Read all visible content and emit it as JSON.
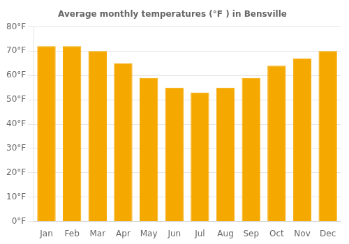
{
  "chart_data": {
    "type": "bar",
    "title": "Average monthly temperatures (°F ) in Bensville",
    "categories": [
      "Jan",
      "Feb",
      "Mar",
      "Apr",
      "May",
      "Jun",
      "Jul",
      "Aug",
      "Sep",
      "Oct",
      "Nov",
      "Dec"
    ],
    "values": [
      72,
      72,
      70,
      65,
      59,
      55,
      53,
      55,
      59,
      64,
      67,
      70
    ],
    "color": "#F5A800",
    "ylim": [
      0,
      80
    ],
    "yticks": [
      {
        "value": 0,
        "label": "0°F"
      },
      {
        "value": 10,
        "label": "10°F"
      },
      {
        "value": 20,
        "label": "20°F"
      },
      {
        "value": 30,
        "label": "30°F"
      },
      {
        "value": 40,
        "label": "40°F"
      },
      {
        "value": 50,
        "label": "50°F"
      },
      {
        "value": 60,
        "label": "60°F"
      },
      {
        "value": 70,
        "label": "70°F"
      },
      {
        "value": 80,
        "label": "80°F"
      }
    ],
    "grid": true
  }
}
